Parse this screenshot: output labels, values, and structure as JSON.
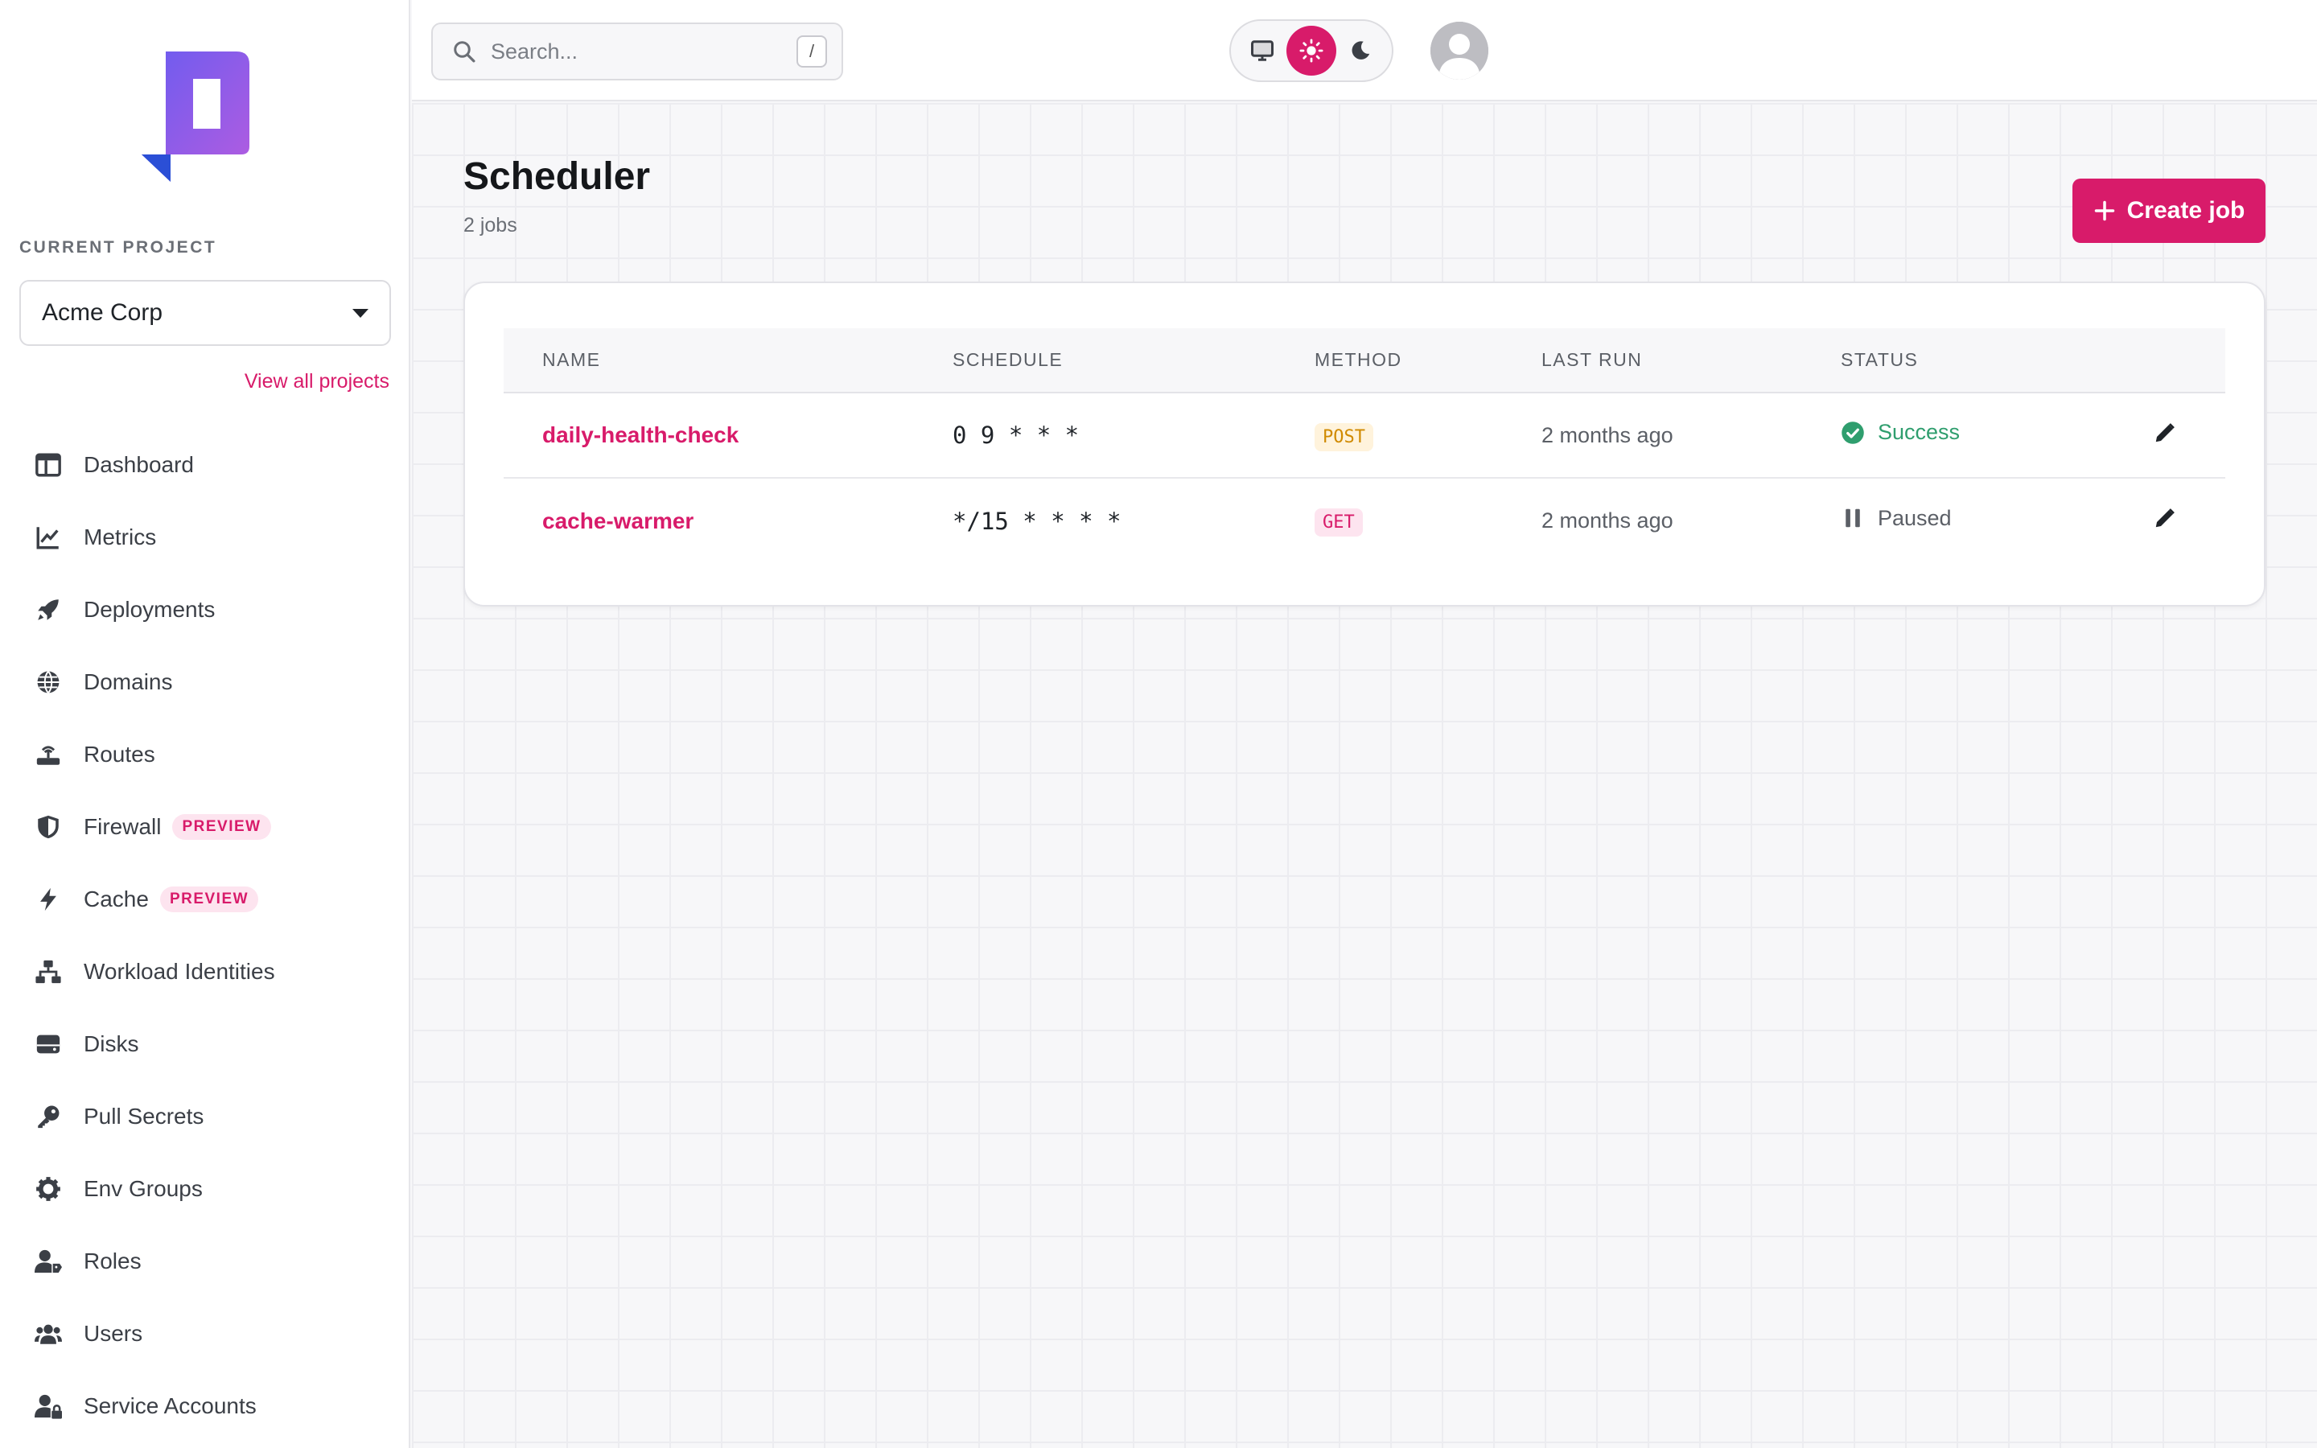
{
  "sidebar": {
    "project_label": "CURRENT PROJECT",
    "project_selected": "Acme Corp",
    "view_all_projects": "View all projects",
    "items": [
      {
        "label": "Dashboard",
        "icon": "dashboard-icon"
      },
      {
        "label": "Metrics",
        "icon": "chart-line-icon"
      },
      {
        "label": "Deployments",
        "icon": "rocket-icon"
      },
      {
        "label": "Domains",
        "icon": "globe-icon"
      },
      {
        "label": "Routes",
        "icon": "router-icon"
      },
      {
        "label": "Firewall",
        "icon": "shield-icon",
        "badge": "PREVIEW"
      },
      {
        "label": "Cache",
        "icon": "bolt-icon",
        "badge": "PREVIEW"
      },
      {
        "label": "Workload Identities",
        "icon": "network-icon"
      },
      {
        "label": "Disks",
        "icon": "disk-icon"
      },
      {
        "label": "Pull Secrets",
        "icon": "key-icon"
      },
      {
        "label": "Env Groups",
        "icon": "gear-icon"
      },
      {
        "label": "Roles",
        "icon": "user-tag-icon"
      },
      {
        "label": "Users",
        "icon": "users-icon"
      },
      {
        "label": "Service Accounts",
        "icon": "user-lock-icon"
      }
    ]
  },
  "topbar": {
    "search_placeholder": "Search...",
    "search_shortcut": "/",
    "theme_active": "light"
  },
  "main": {
    "title": "Scheduler",
    "subtitle": "2 jobs",
    "create_label": "Create job",
    "table": {
      "headers": [
        "NAME",
        "SCHEDULE",
        "METHOD",
        "LAST RUN",
        "STATUS"
      ],
      "rows": [
        {
          "name": "daily-health-check",
          "schedule": "0 9 * * *",
          "method": "POST",
          "last_run": "2 months ago",
          "status": "Success"
        },
        {
          "name": "cache-warmer",
          "schedule": "*/15 * * * *",
          "method": "GET",
          "last_run": "2 months ago",
          "status": "Paused"
        }
      ]
    }
  },
  "colors": {
    "accent": "#d81b6a",
    "success": "#2f9e6e",
    "post": "#d08a00"
  }
}
